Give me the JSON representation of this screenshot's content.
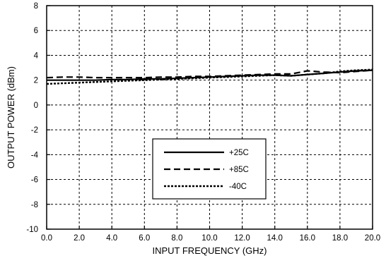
{
  "chart_data": {
    "type": "line",
    "title": "",
    "xlabel": "INPUT FREQUENCY (GHz)",
    "ylabel": "OUTPUT POWER (dBm)",
    "xlim": [
      0,
      20
    ],
    "ylim": [
      -10,
      8
    ],
    "x_ticks": [
      "0.0",
      "2.0",
      "4.0",
      "6.0",
      "8.0",
      "10.0",
      "12.0",
      "14.0",
      "16.0",
      "18.0",
      "20.0"
    ],
    "y_ticks": [
      "8",
      "6",
      "4",
      "2",
      "0",
      "-2",
      "-4",
      "-6",
      "-8",
      "-10"
    ],
    "grid": true,
    "legend_position": "lower-center",
    "series": [
      {
        "name": "+25C",
        "style": "solid",
        "x": [
          0,
          1,
          2,
          3,
          4,
          5,
          6,
          7,
          8,
          9,
          10,
          11,
          12,
          13,
          14,
          15,
          16,
          17,
          18,
          19,
          20
        ],
        "y": [
          2.0,
          2.0,
          2.0,
          2.0,
          2.05,
          2.05,
          2.1,
          2.1,
          2.15,
          2.2,
          2.25,
          2.3,
          2.35,
          2.4,
          2.4,
          2.35,
          2.45,
          2.55,
          2.65,
          2.75,
          2.8
        ]
      },
      {
        "name": "+85C",
        "style": "dashed",
        "x": [
          0,
          1,
          2,
          3,
          4,
          5,
          6,
          7,
          8,
          9,
          10,
          11,
          12,
          13,
          14,
          15,
          16,
          17,
          18,
          19,
          20
        ],
        "y": [
          2.2,
          2.25,
          2.25,
          2.2,
          2.2,
          2.2,
          2.2,
          2.25,
          2.25,
          2.3,
          2.3,
          2.35,
          2.4,
          2.45,
          2.5,
          2.5,
          2.75,
          2.65,
          2.6,
          2.7,
          2.8
        ]
      },
      {
        "name": "-40C",
        "style": "dotted",
        "x": [
          0,
          1,
          2,
          3,
          4,
          5,
          6,
          7,
          8,
          9,
          10,
          11,
          12,
          13,
          14,
          15,
          16,
          17,
          18,
          19,
          20
        ],
        "y": [
          1.7,
          1.75,
          1.8,
          1.85,
          1.9,
          1.95,
          2.0,
          2.05,
          2.1,
          2.15,
          2.2,
          2.25,
          2.3,
          2.35,
          2.4,
          2.35,
          2.45,
          2.55,
          2.7,
          2.8,
          2.85
        ]
      }
    ]
  }
}
